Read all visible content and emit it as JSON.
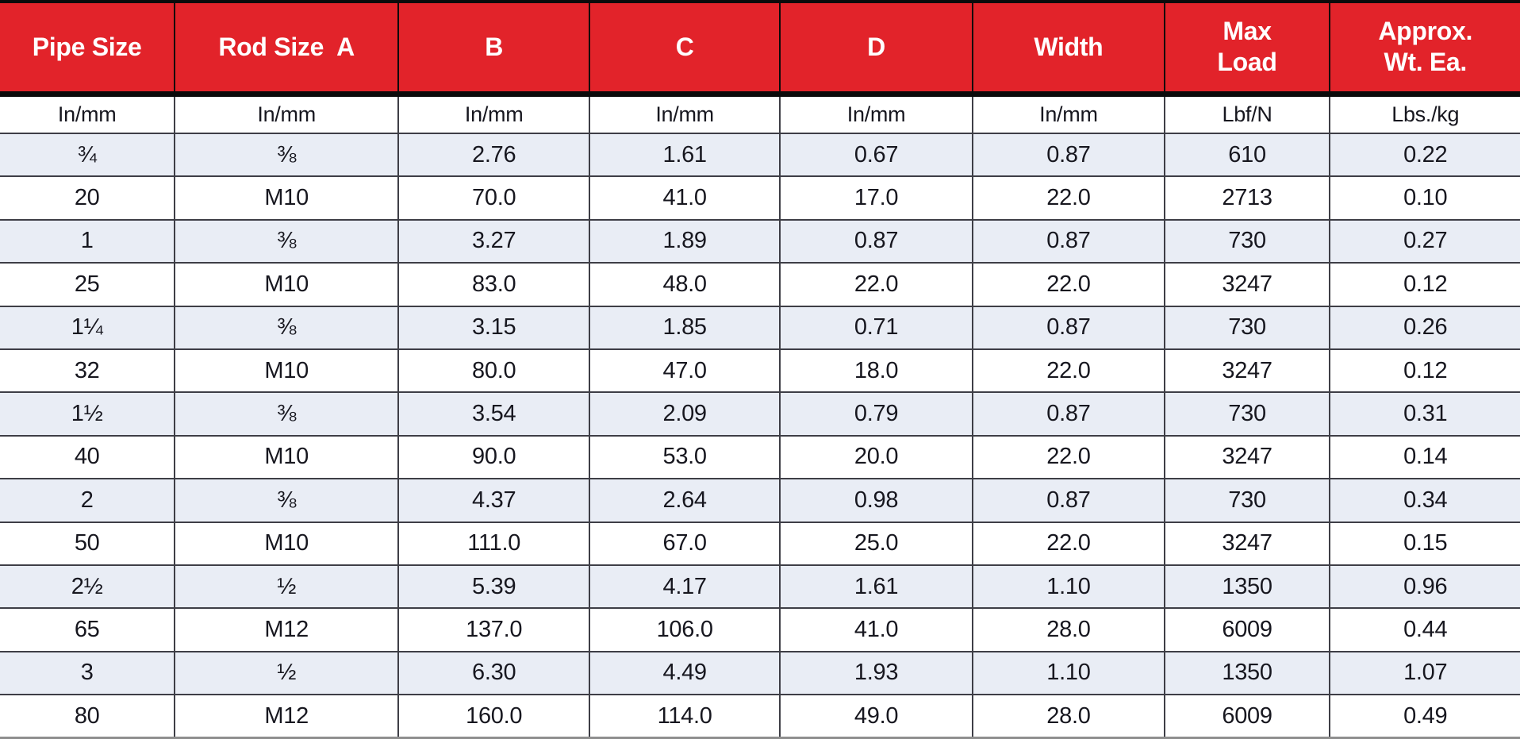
{
  "title": "Pipe hanger dimensions and load specification table",
  "colors": {
    "header_bg": "#e2232a",
    "header_text": "#ffffff",
    "row_alt_bg": "#e9edf5",
    "row_bg": "#ffffff",
    "text": "#17171f"
  },
  "table": {
    "columns": [
      {
        "label": "Pipe Size",
        "unit": "In/mm"
      },
      {
        "label": "Rod Size  A",
        "unit": "In/mm"
      },
      {
        "label": "B",
        "unit": "In/mm"
      },
      {
        "label": "C",
        "unit": "In/mm"
      },
      {
        "label": "D",
        "unit": "In/mm"
      },
      {
        "label": "Width",
        "unit": "In/mm"
      },
      {
        "label": "Max\nLoad",
        "unit": "Lbf/N"
      },
      {
        "label": "Approx.\nWt. Ea.",
        "unit": "Lbs./kg"
      }
    ],
    "rows": [
      [
        "¾",
        "⅜",
        "2.76",
        "1.61",
        "0.67",
        "0.87",
        "610",
        "0.22"
      ],
      [
        "20",
        "M10",
        "70.0",
        "41.0",
        "17.0",
        "22.0",
        "2713",
        "0.10"
      ],
      [
        "1",
        "⅜",
        "3.27",
        "1.89",
        "0.87",
        "0.87",
        "730",
        "0.27"
      ],
      [
        "25",
        "M10",
        "83.0",
        "48.0",
        "22.0",
        "22.0",
        "3247",
        "0.12"
      ],
      [
        "1¼",
        "⅜",
        "3.15",
        "1.85",
        "0.71",
        "0.87",
        "730",
        "0.26"
      ],
      [
        "32",
        "M10",
        "80.0",
        "47.0",
        "18.0",
        "22.0",
        "3247",
        "0.12"
      ],
      [
        "1½",
        "⅜",
        "3.54",
        "2.09",
        "0.79",
        "0.87",
        "730",
        "0.31"
      ],
      [
        "40",
        "M10",
        "90.0",
        "53.0",
        "20.0",
        "22.0",
        "3247",
        "0.14"
      ],
      [
        "2",
        "⅜",
        "4.37",
        "2.64",
        "0.98",
        "0.87",
        "730",
        "0.34"
      ],
      [
        "50",
        "M10",
        "111.0",
        "67.0",
        "25.0",
        "22.0",
        "3247",
        "0.15"
      ],
      [
        "2½",
        "½",
        "5.39",
        "4.17",
        "1.61",
        "1.10",
        "1350",
        "0.96"
      ],
      [
        "65",
        "M12",
        "137.0",
        "106.0",
        "41.0",
        "28.0",
        "6009",
        "0.44"
      ],
      [
        "3",
        "½",
        "6.30",
        "4.49",
        "1.93",
        "1.10",
        "1350",
        "1.07"
      ],
      [
        "80",
        "M12",
        "160.0",
        "114.0",
        "49.0",
        "28.0",
        "6009",
        "0.49"
      ]
    ]
  }
}
